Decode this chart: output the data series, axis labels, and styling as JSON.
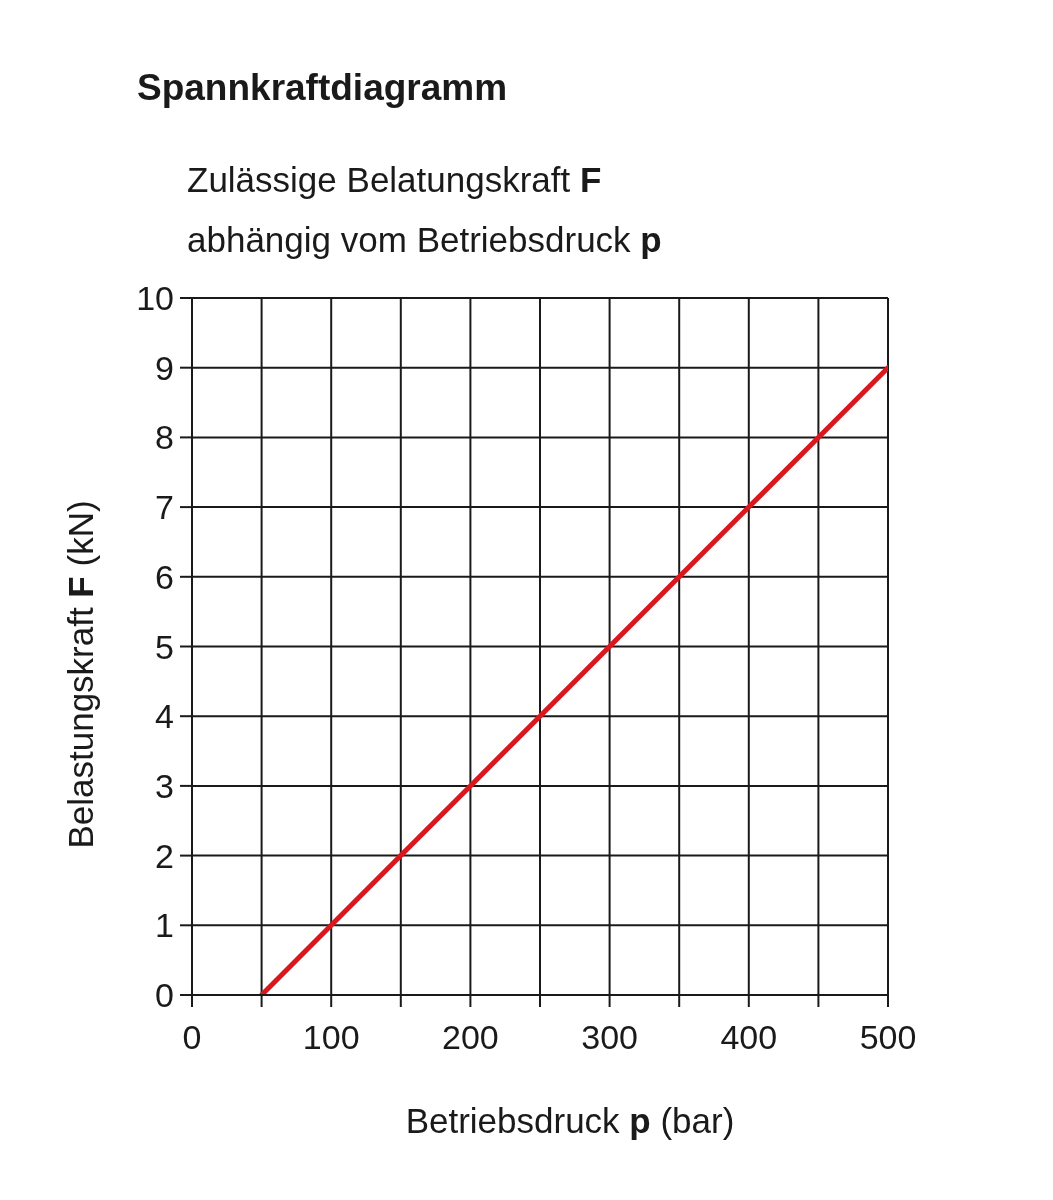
{
  "chart_data": {
    "type": "line",
    "title": "Spannkraftdiagramm",
    "subtitle": "Zulässige Belatungskraft F\nabhängig vom Betriebsdruck p",
    "xlabel": "Betriebsdruck p (bar)",
    "ylabel": "Belastungskraft F (kN)",
    "x": [
      50,
      100,
      150,
      200,
      250,
      300,
      350,
      400,
      450,
      500
    ],
    "series": [
      {
        "color": "#d7191f",
        "values": [
          0,
          1,
          2,
          3,
          4,
          5,
          6,
          7,
          8,
          9
        ]
      }
    ],
    "xlim": [
      0,
      500
    ],
    "ylim": [
      0,
      10
    ],
    "xticks": [
      0,
      {
        "value": 50,
        "label": null
      },
      100,
      {
        "value": 150,
        "label": null
      },
      200,
      {
        "value": 250,
        "label": null
      },
      300,
      {
        "value": 350,
        "label": null
      },
      400,
      {
        "value": 450,
        "label": null
      },
      500
    ],
    "yticks": [
      0,
      1,
      2,
      3,
      4,
      5,
      6,
      7,
      8,
      9,
      10
    ],
    "grid": true,
    "marker": "none",
    "line_style": "solid"
  }
}
